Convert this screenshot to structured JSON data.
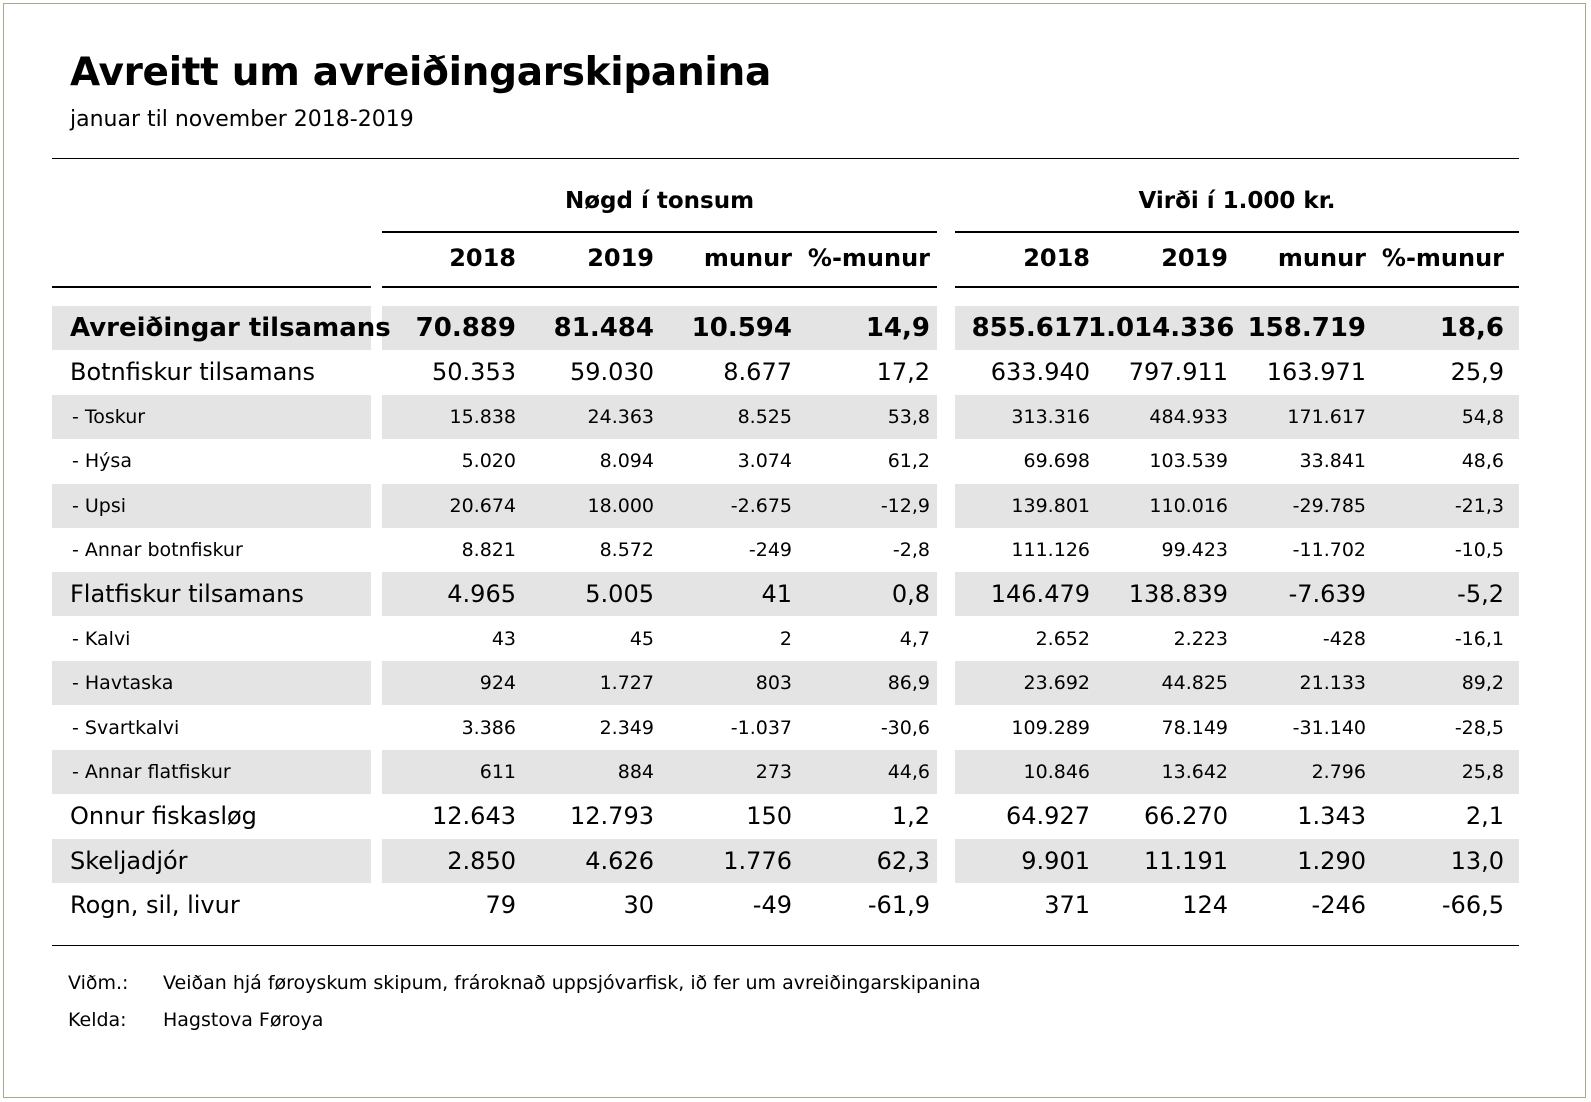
{
  "title": "Avreitt um avreiðingarskipanina",
  "subtitle": "januar til november 2018-2019",
  "groups": {
    "quantity": "Nøgd í tonsum",
    "value": "Virði í 1.000 kr."
  },
  "columns": [
    "2018",
    "2019",
    "munur",
    "%-munur",
    "2018",
    "2019",
    "munur",
    "%-munur"
  ],
  "rows": [
    {
      "type": "total",
      "label": "Avreiðingar tilsamans",
      "values": [
        "70.889",
        "81.484",
        "10.594",
        "14,9",
        "855.617",
        "1.014.336",
        "158.719",
        "18,6"
      ]
    },
    {
      "type": "subtotal",
      "label": "Botnfiskur tilsamans",
      "values": [
        "50.353",
        "59.030",
        "8.677",
        "17,2",
        "633.940",
        "797.911",
        "163.971",
        "25,9"
      ]
    },
    {
      "type": "detail",
      "label": "- Toskur",
      "values": [
        "15.838",
        "24.363",
        "8.525",
        "53,8",
        "313.316",
        "484.933",
        "171.617",
        "54,8"
      ]
    },
    {
      "type": "detail",
      "label": "- Hýsa",
      "values": [
        "5.020",
        "8.094",
        "3.074",
        "61,2",
        "69.698",
        "103.539",
        "33.841",
        "48,6"
      ]
    },
    {
      "type": "detail",
      "label": "- Upsi",
      "values": [
        "20.674",
        "18.000",
        "-2.675",
        "-12,9",
        "139.801",
        "110.016",
        "-29.785",
        "-21,3"
      ]
    },
    {
      "type": "detail",
      "label": "- Annar botnfiskur",
      "values": [
        "8.821",
        "8.572",
        "-249",
        "-2,8",
        "111.126",
        "99.423",
        "-11.702",
        "-10,5"
      ]
    },
    {
      "type": "subtotal",
      "label": "Flatfiskur tilsamans",
      "values": [
        "4.965",
        "5.005",
        "41",
        "0,8",
        "146.479",
        "138.839",
        "-7.639",
        "-5,2"
      ]
    },
    {
      "type": "detail",
      "label": "- Kalvi",
      "values": [
        "43",
        "45",
        "2",
        "4,7",
        "2.652",
        "2.223",
        "-428",
        "-16,1"
      ]
    },
    {
      "type": "detail",
      "label": "- Havtaska",
      "values": [
        "924",
        "1.727",
        "803",
        "86,9",
        "23.692",
        "44.825",
        "21.133",
        "89,2"
      ]
    },
    {
      "type": "detail",
      "label": "- Svartkalvi",
      "values": [
        "3.386",
        "2.349",
        "-1.037",
        "-30,6",
        "109.289",
        "78.149",
        "-31.140",
        "-28,5"
      ]
    },
    {
      "type": "detail",
      "label": "- Annar flatfiskur",
      "values": [
        "611",
        "884",
        "273",
        "44,6",
        "10.846",
        "13.642",
        "2.796",
        "25,8"
      ]
    },
    {
      "type": "subtotal",
      "label": "Onnur fiskasløg",
      "values": [
        "12.643",
        "12.793",
        "150",
        "1,2",
        "64.927",
        "66.270",
        "1.343",
        "2,1"
      ]
    },
    {
      "type": "subtotal",
      "label": "Skeljadjór",
      "values": [
        "2.850",
        "4.626",
        "1.776",
        "62,3",
        "9.901",
        "11.191",
        "1.290",
        "13,0"
      ]
    },
    {
      "type": "subtotal",
      "label": "Rogn, sil, livur",
      "values": [
        "79",
        "30",
        "-49",
        "-61,9",
        "371",
        "124",
        "-246",
        "-66,5"
      ]
    }
  ],
  "notes": [
    {
      "key": "Viðm.:",
      "text": "Veiðan hjá føroyskum skipum, frároknað uppsjóvarfisk, ið fer um avreiðingarskipanina"
    },
    {
      "key": "Kelda:",
      "text": "Hagstova Føroya"
    }
  ]
}
